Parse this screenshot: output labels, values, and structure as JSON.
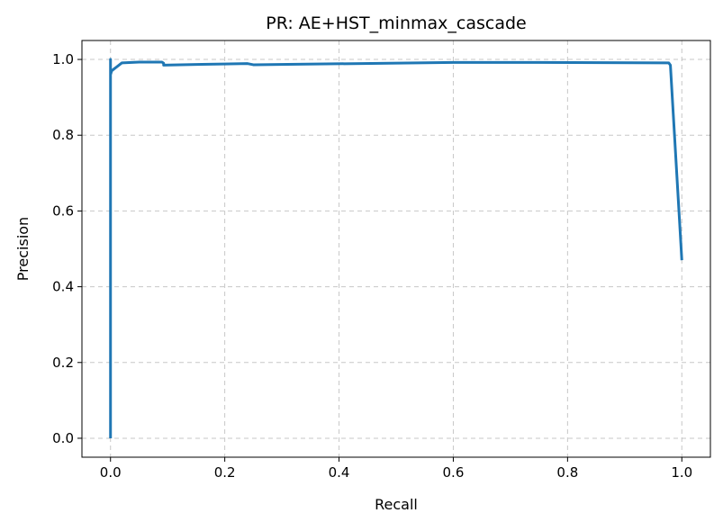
{
  "chart_data": {
    "type": "line",
    "title": "PR: AE+HST_minmax_cascade",
    "xlabel": "Recall",
    "ylabel": "Precision",
    "xlim": [
      -0.05,
      1.05
    ],
    "ylim": [
      -0.05,
      1.05
    ],
    "xticks": [
      0.0,
      0.2,
      0.4,
      0.6,
      0.8,
      1.0
    ],
    "yticks": [
      0.0,
      0.2,
      0.4,
      0.6,
      0.8,
      1.0
    ],
    "xtick_labels": [
      "0.0",
      "0.2",
      "0.4",
      "0.6",
      "0.8",
      "1.0"
    ],
    "ytick_labels": [
      "0.0",
      "0.2",
      "0.4",
      "0.6",
      "0.8",
      "1.0"
    ],
    "grid": true,
    "color": "#1f77b4",
    "series": [
      {
        "x": [
          0.0,
          0.0,
          0.0,
          0.002,
          0.02,
          0.05,
          0.09,
          0.093,
          0.093,
          0.16,
          0.24,
          0.25,
          0.31,
          0.6,
          0.75,
          0.977,
          0.98,
          1.0
        ],
        "y": [
          0.0,
          1.0,
          0.96,
          0.97,
          0.991,
          0.993,
          0.993,
          0.99,
          0.985,
          0.987,
          0.989,
          0.986,
          0.987,
          0.992,
          0.992,
          0.991,
          0.985,
          0.47
        ]
      }
    ]
  }
}
